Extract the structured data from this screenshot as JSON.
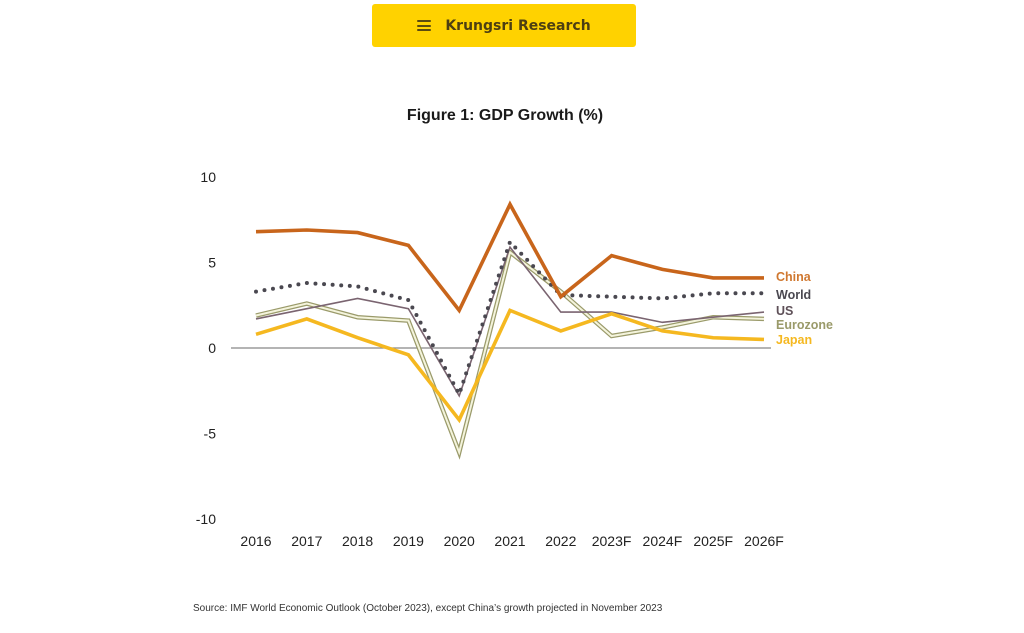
{
  "header": {
    "brand": "Krungsri Research",
    "menu_icon": "hamburger-menu-icon",
    "accent_color": "#FFD200"
  },
  "figure": {
    "title": "Figure 1: GDP Growth (%)",
    "source": "Source: IMF World Economic Outlook (October 2023), except China’s growth projected in November 2023"
  },
  "chart_data": {
    "type": "line",
    "title": "Figure 1: GDP Growth (%)",
    "xlabel": "",
    "ylabel": "",
    "x": [
      "2016",
      "2017",
      "2018",
      "2019",
      "2020",
      "2021",
      "2022",
      "2023F",
      "2024F",
      "2025F",
      "2026F"
    ],
    "ylim": [
      -10,
      10
    ],
    "yticks": [
      10,
      5,
      0,
      -5,
      -10
    ],
    "grid": false,
    "zero_line": true,
    "legend_position": "right (end-of-line labels)",
    "series": [
      {
        "name": "China",
        "color": "#C8651B",
        "style": "solid-thick",
        "values": [
          6.8,
          6.9,
          6.75,
          6.0,
          2.2,
          8.4,
          3.0,
          5.4,
          4.6,
          4.1,
          4.1
        ]
      },
      {
        "name": "World",
        "color": "#4a4850",
        "style": "dotted",
        "values": [
          3.3,
          3.8,
          3.6,
          2.8,
          -2.7,
          6.2,
          3.1,
          3.0,
          2.9,
          3.2,
          3.2
        ]
      },
      {
        "name": "US",
        "color": "#7a6470",
        "style": "solid-thin",
        "values": [
          1.7,
          2.3,
          2.9,
          2.3,
          -2.8,
          5.9,
          2.1,
          2.1,
          1.5,
          1.8,
          2.1
        ]
      },
      {
        "name": "Eurozone",
        "color": "#9a9a6a",
        "style": "double",
        "values": [
          1.9,
          2.6,
          1.8,
          1.6,
          -6.1,
          5.6,
          3.3,
          0.7,
          1.2,
          1.8,
          1.7
        ]
      },
      {
        "name": "Japan",
        "color": "#F5B820",
        "style": "solid-thick",
        "values": [
          0.8,
          1.7,
          0.6,
          -0.4,
          -4.2,
          2.2,
          1.0,
          2.0,
          1.0,
          0.6,
          0.5
        ]
      }
    ]
  }
}
